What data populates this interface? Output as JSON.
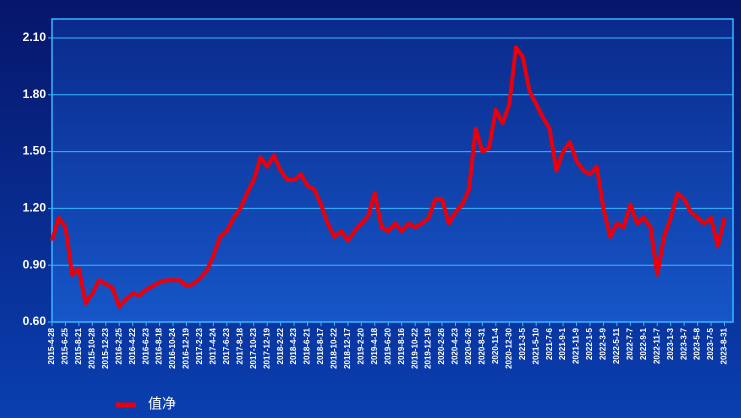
{
  "chart_data": {
    "type": "line",
    "categories": [
      "2015-4-28",
      null,
      "2015-6-25",
      null,
      "2015-8-21",
      null,
      "2015-10-28",
      null,
      "2015-12-23",
      null,
      "2016-2-25",
      null,
      "2016-4-22",
      null,
      "2016-6-23",
      null,
      "2016-8-18",
      null,
      "2016-10-24",
      null,
      "2016-12-19",
      null,
      "2017-2-23",
      null,
      "2017-4-24",
      null,
      "2017-6-23",
      null,
      "2017-8-18",
      null,
      "2017-10-23",
      null,
      "2017-12-19",
      null,
      "2018-2-22",
      null,
      "2018-4-23",
      null,
      "2018-6-21",
      null,
      "2018-8-17",
      null,
      "2018-10-22",
      null,
      "2018-12-17",
      null,
      "2019-2-20",
      null,
      "2019-4-18",
      null,
      "2019-6-20",
      null,
      "2019-8-16",
      null,
      "2019-10-22",
      null,
      "2019-12-19",
      null,
      "2020-2-26",
      null,
      "2020-4-23",
      null,
      "2020-6-26",
      null,
      "2020-8-31",
      null,
      "2020-11-4",
      null,
      "2020-12-30",
      null,
      "2021-3-5",
      null,
      "2021-5-10",
      null,
      "2021-7-6",
      null,
      "2021-9-1",
      null,
      "2021-11-9",
      null,
      "2022-1-5",
      null,
      "2022-3-9",
      null,
      "2022-5-11",
      null,
      "2022-7-7",
      null,
      "2022-9-1",
      null,
      "2022-11-7",
      null,
      "2023-1-3",
      null,
      "2023-3-7",
      null,
      "2023-5-8",
      null,
      "2023-7-5",
      null,
      "2023-8-31"
    ],
    "series": [
      {
        "name": "值净",
        "color": "#e8000b",
        "values": [
          1.03,
          1.15,
          1.1,
          0.85,
          0.88,
          0.7,
          0.75,
          0.82,
          0.8,
          0.78,
          0.68,
          0.72,
          0.75,
          0.74,
          0.77,
          0.79,
          0.81,
          0.82,
          0.82,
          0.82,
          0.79,
          0.8,
          0.83,
          0.87,
          0.95,
          1.05,
          1.08,
          1.15,
          1.2,
          1.28,
          1.35,
          1.47,
          1.42,
          1.48,
          1.4,
          1.35,
          1.35,
          1.38,
          1.32,
          1.3,
          1.22,
          1.12,
          1.05,
          1.08,
          1.03,
          1.08,
          1.12,
          1.16,
          1.28,
          1.1,
          1.08,
          1.12,
          1.08,
          1.12,
          1.1,
          1.12,
          1.15,
          1.25,
          1.25,
          1.12,
          1.18,
          1.22,
          1.3,
          1.62,
          1.5,
          1.52,
          1.72,
          1.65,
          1.75,
          2.05,
          2.0,
          1.82,
          1.75,
          1.68,
          1.62,
          1.4,
          1.5,
          1.55,
          1.45,
          1.4,
          1.38,
          1.42,
          1.2,
          1.05,
          1.12,
          1.1,
          1.22,
          1.12,
          1.15,
          1.1,
          0.85,
          1.05,
          1.15,
          1.28,
          1.25,
          1.18,
          1.15,
          1.12,
          1.15,
          1.0,
          1.15
        ]
      }
    ],
    "ylim": [
      0.6,
      2.2
    ],
    "yticks": [
      {
        "value": 0.6,
        "label": "0.60"
      },
      {
        "value": 0.9,
        "label": "0.90"
      },
      {
        "value": 1.2,
        "label": "1.20"
      },
      {
        "value": 1.5,
        "label": "1.50"
      },
      {
        "value": 1.8,
        "label": "1.80"
      },
      {
        "value": 2.1,
        "label": "2.10"
      }
    ],
    "grid": true
  }
}
